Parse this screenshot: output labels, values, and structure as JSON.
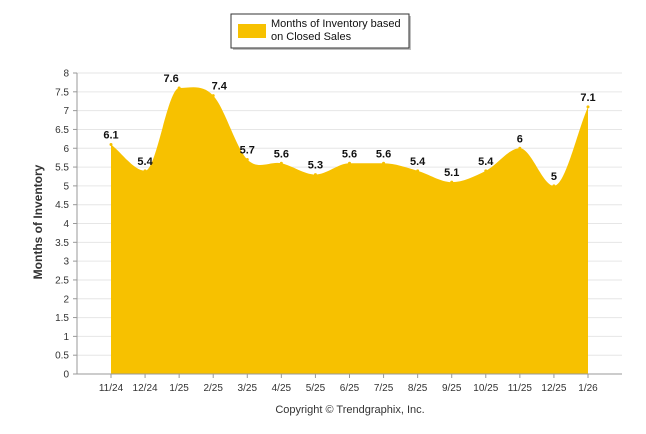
{
  "chart_data": {
    "type": "area",
    "legend": "Months of Inventory based on Closed Sales",
    "legend_lines": [
      "Months of Inventory based",
      "on Closed Sales"
    ],
    "legend_position": "top-center",
    "ylabel": "Months of Inventory",
    "xlabel": "",
    "ylim": [
      0,
      8
    ],
    "yticks": [
      "0",
      "0.5",
      "1",
      "1.5",
      "2",
      "2.5",
      "3",
      "3.5",
      "4",
      "4.5",
      "5",
      "5.5",
      "6",
      "6.5",
      "7",
      "7.5",
      "8"
    ],
    "categories": [
      "11/24",
      "12/24",
      "1/25",
      "2/25",
      "3/25",
      "4/25",
      "5/25",
      "6/25",
      "7/25",
      "8/25",
      "9/25",
      "10/25",
      "11/25",
      "12/25",
      "1/26"
    ],
    "values": [
      6.1,
      5.4,
      7.6,
      7.4,
      5.7,
      5.6,
      5.3,
      5.6,
      5.6,
      5.4,
      5.1,
      5.4,
      6,
      5,
      7.1
    ],
    "data_labels": [
      "6.1",
      "5.4",
      "7.6",
      "7.4",
      "5.7",
      "5.6",
      "5.3",
      "5.6",
      "5.6",
      "5.4",
      "5.1",
      "5.4",
      "6",
      "5",
      "7.1"
    ],
    "grid": true,
    "fill_color": "#F7C100"
  },
  "copyright": "Copyright © Trendgraphix, Inc."
}
